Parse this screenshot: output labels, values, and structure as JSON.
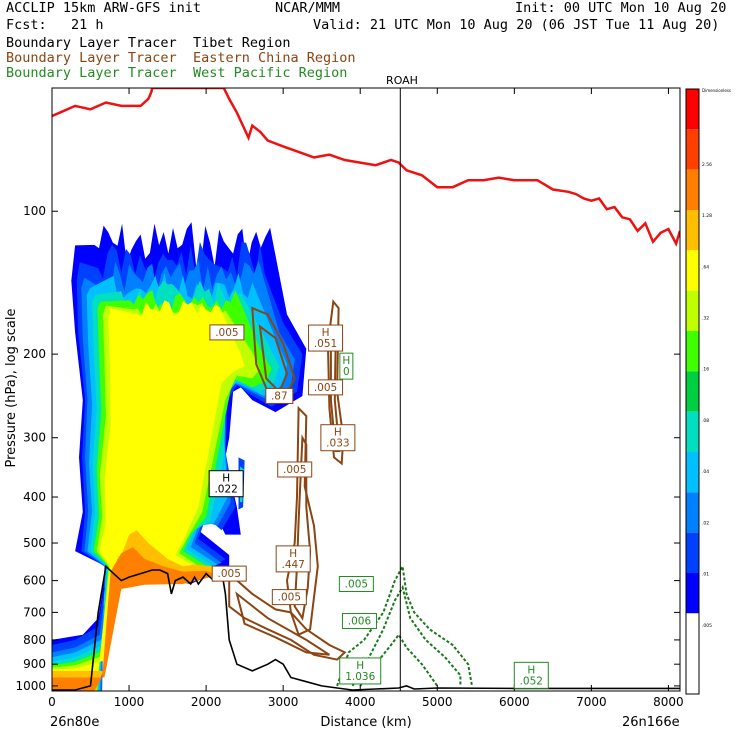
{
  "header": {
    "line1_left": "ACCLIP 15km ARW-GFS init",
    "line1_mid": "NCAR/MMM",
    "line1_right": "Init: 00 UTC Mon 10 Aug 20",
    "line2_left": "Fcst:   21 h",
    "line2_right": "Valid: 21 UTC Mon 10 Aug 20 (06 JST Tue 11 Aug 20)",
    "legend": [
      {
        "prefix": "Boundary Layer Tracer",
        "region": "Tibet Region",
        "color": "#000000"
      },
      {
        "prefix": "Boundary Layer Tracer",
        "region": "Eastern China Region",
        "color": "#8B4513"
      },
      {
        "prefix": "Boundary Layer Tracer",
        "region": "West Pacific Region",
        "color": "#228B22"
      }
    ]
  },
  "chart_data": {
    "type": "cross-section",
    "xlabel": "Distance (km)",
    "ylabel": "Pressure (hPa), log scale",
    "x_ticks": [
      "0",
      "1000",
      "2000",
      "3000",
      "4000",
      "5000",
      "6000",
      "7000",
      "8000"
    ],
    "xlim": [
      0,
      8150
    ],
    "y_ticks": [
      "100",
      "200",
      "300",
      "400",
      "500",
      "600",
      "700",
      "800",
      "900",
      "1000"
    ],
    "ylim": [
      1025,
      55
    ],
    "y_scale": "log",
    "endpoint_left": "26n80e",
    "endpoint_right": "26n166e",
    "station": {
      "label": "ROAH",
      "x": 4520
    },
    "colorbar": {
      "labels": [
        "Dimensionless",
        "2.56",
        "1.28",
        ".64",
        ".32",
        ".16",
        ".08",
        ".04",
        ".02",
        ".01",
        ".005"
      ],
      "colors": [
        "#ff0000",
        "#ff4000",
        "#ff8000",
        "#ffbf00",
        "#ffff00",
        "#bfff00",
        "#40ff00",
        "#00d040",
        "#00e0c0",
        "#00c0ff",
        "#0080ff",
        "#0040ff",
        "#0000ff",
        "#ffffff",
        "#ffffff"
      ]
    },
    "tropopause_red": {
      "x": [
        0,
        100,
        300,
        500,
        700,
        900,
        1150,
        1250,
        1270,
        1290,
        1300,
        1350,
        1450,
        1550,
        1700,
        1850,
        1950,
        2050,
        2200,
        2230,
        2300,
        2400,
        2550,
        2600,
        2700,
        2800,
        2900,
        3000,
        3200,
        3400,
        3600,
        3800,
        4000,
        4200,
        4400,
        4500,
        4600,
        4800,
        5000,
        5200,
        5400,
        5600,
        5800,
        6000,
        6300,
        6500,
        6700,
        6800,
        6900,
        7000,
        7100,
        7200,
        7300,
        7400,
        7500,
        7600,
        7700,
        7800,
        7900,
        8000,
        8100,
        8150
      ],
      "p": [
        63,
        62,
        60,
        61,
        59,
        60,
        60,
        58,
        57,
        56,
        55,
        55,
        55,
        55,
        55,
        55,
        55,
        55,
        55,
        55,
        58,
        62,
        70,
        66,
        68,
        71,
        72,
        73,
        75,
        77,
        76,
        78,
        79,
        80,
        78,
        79,
        82,
        84,
        89,
        89,
        86,
        86,
        85,
        86,
        86,
        90,
        91,
        92,
        94,
        95,
        94,
        99,
        98,
        103,
        104,
        110,
        106,
        116,
        111,
        109,
        117,
        110
      ]
    },
    "terrain_black": {
      "x": [
        0,
        300,
        500,
        600,
        700,
        800,
        900,
        1000,
        1150,
        1300,
        1400,
        1500,
        1550,
        1600,
        1700,
        1800,
        1850,
        1900,
        2000,
        2100,
        2200,
        2250,
        2300,
        2400,
        2600,
        2800,
        2900,
        3000,
        3100,
        3300,
        3500,
        3700,
        3900,
        4200,
        4500,
        4600,
        4700,
        5000,
        6000,
        7000,
        8000,
        8150
      ],
      "p": [
        1020,
        1020,
        1000,
        700,
        560,
        580,
        600,
        590,
        580,
        570,
        570,
        580,
        640,
        600,
        590,
        610,
        590,
        610,
        580,
        600,
        570,
        640,
        800,
        900,
        930,
        900,
        880,
        900,
        960,
        980,
        1000,
        1010,
        1020,
        1015,
        1010,
        1000,
        1015,
        1010,
        1012,
        1012,
        1012,
        1012
      ]
    },
    "labels_brown": [
      {
        "text": ".005",
        "x": 2270,
        "p": 180
      },
      {
        "text": "H\n.051",
        "x": 3550,
        "p": 185
      },
      {
        "text": ".005",
        "x": 3550,
        "p": 235
      },
      {
        "text": ".87",
        "x": 2950,
        "p": 245
      },
      {
        "text": "H\n.033",
        "x": 3710,
        "p": 300
      },
      {
        "text": ".005",
        "x": 3150,
        "p": 350
      },
      {
        "text": ".005",
        "x": 2300,
        "p": 580
      },
      {
        "text": "H\n.447",
        "x": 3130,
        "p": 540
      },
      {
        "text": ".005",
        "x": 3080,
        "p": 650
      }
    ],
    "labels_green": [
      {
        "text": "H\n0",
        "x": 3820,
        "p": 212
      },
      {
        "text": ".005",
        "x": 3950,
        "p": 610
      },
      {
        "text": ".006",
        "x": 3990,
        "p": 730
      },
      {
        "text": "H\n1.036",
        "x": 4000,
        "p": 930
      },
      {
        "text": "H\n.052",
        "x": 6220,
        "p": 950
      }
    ],
    "labels_black": [
      {
        "text": "H\n.022",
        "x": 2260,
        "p": 375
      }
    ]
  }
}
